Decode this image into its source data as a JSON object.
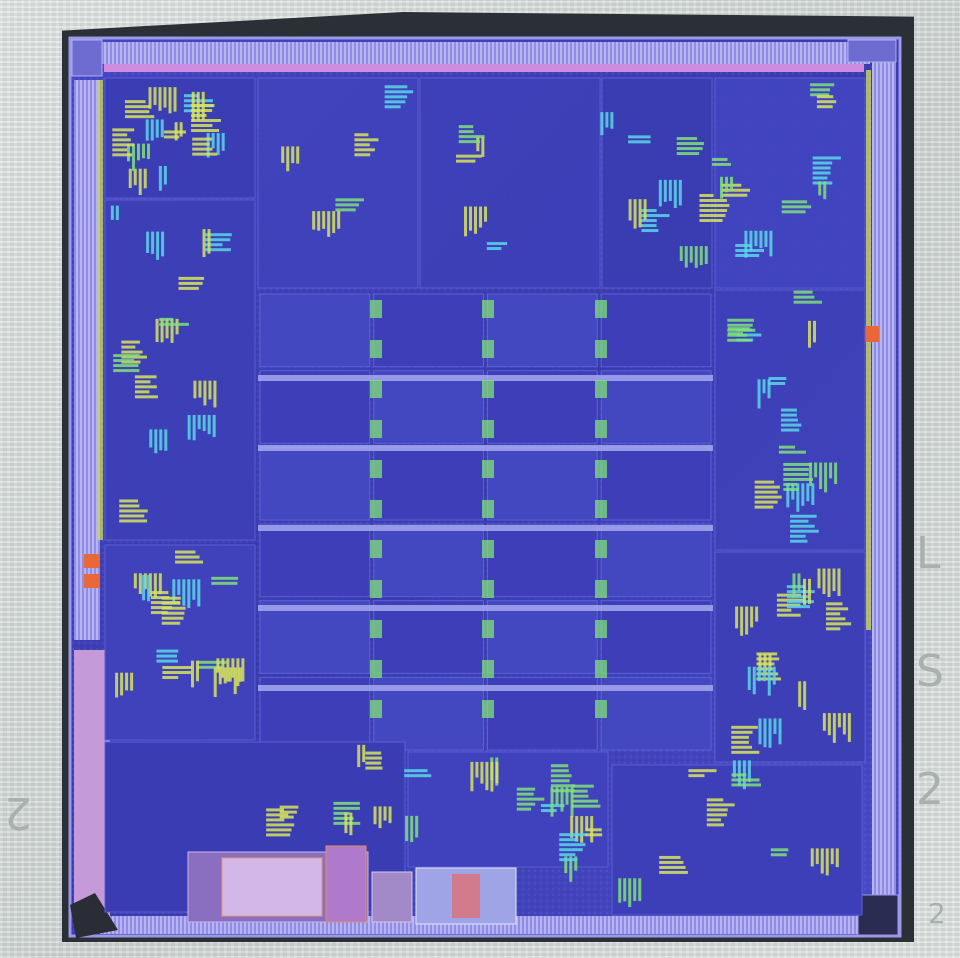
{
  "image": {
    "subject": "die-photo",
    "colors": {
      "die_base": "#3e3fb8",
      "die_dark": "#2a2e8e",
      "die_light": "#6b6fe0",
      "pad_ring": "#8a86e2",
      "pink_edge": "#e79ae8",
      "yellow_cells": "#d8e45a",
      "cyan_cells": "#5ad6e8",
      "green_cells": "#7fe07a",
      "orange_pads": "#e9683a",
      "background": "#d7dcda"
    },
    "background_glyphs": [
      "L",
      "S",
      "2",
      "2",
      "2"
    ],
    "grid": {
      "rows": 6,
      "cols": 4
    }
  }
}
